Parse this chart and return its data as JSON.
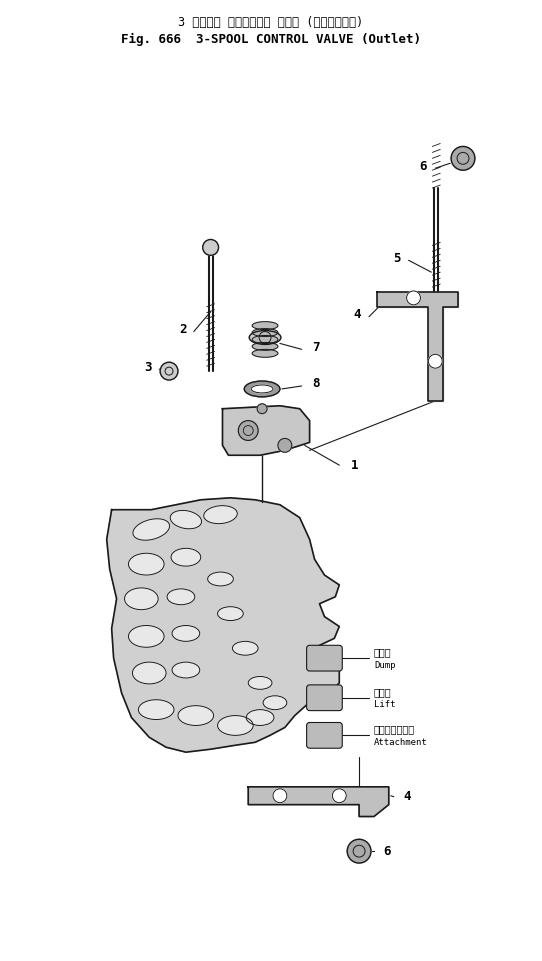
{
  "title_jp": "3 スプール コントロール バルブ (アウトレット)",
  "title_en": "Fig. 666  3-SPOOL CONTROL VALVE (Outlet)",
  "bg_color": "#ffffff",
  "line_color": "#1a1a1a",
  "dump_jp": "ダンプ",
  "dump_en": "Dump",
  "lift_jp": "リフト",
  "lift_en": "Lift",
  "attach_jp": "アタッチメント",
  "attach_en": "Attachment",
  "fig_width": 5.42,
  "fig_height": 9.61,
  "dpi": 100
}
